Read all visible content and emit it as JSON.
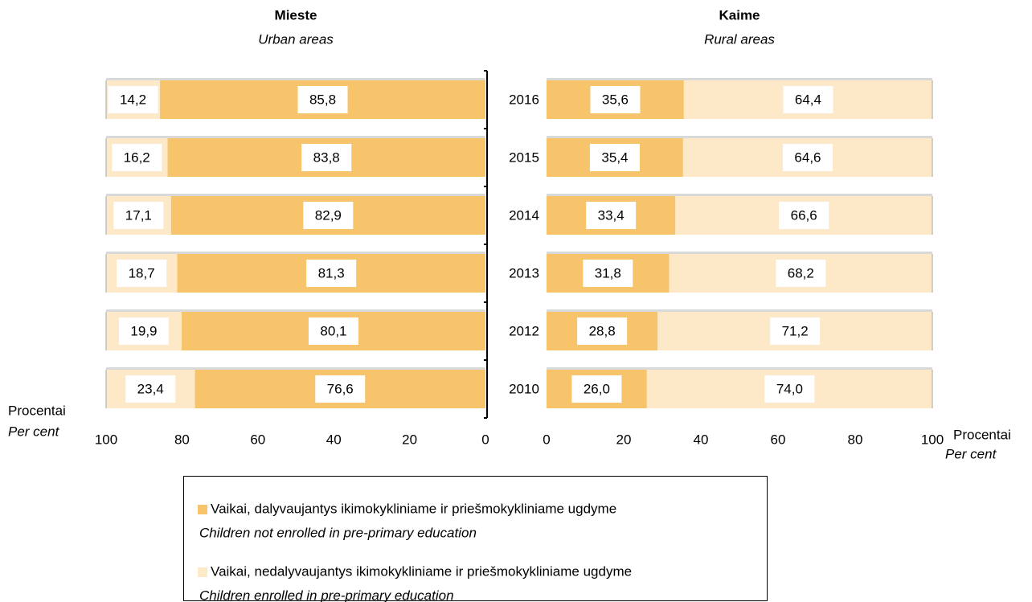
{
  "chart_data": [
    {
      "type": "bar",
      "orientation": "horizontal",
      "stacked": true,
      "x_reversed": true,
      "title": "Mieste",
      "subtitle": "Urban areas",
      "xlabel": "Procentai",
      "xlabel_en": "Per cent",
      "xlim": [
        0,
        100
      ],
      "xticks": [
        0,
        20,
        40,
        60,
        80,
        100
      ],
      "series": [
        {
          "values": [
            85.8,
            83.8,
            82.9,
            81.3,
            80.1,
            76.6
          ],
          "value_labels": [
            "85,8",
            "83,8",
            "82,9",
            "81,3",
            "80,1",
            "76,6"
          ]
        },
        {
          "values": [
            14.2,
            16.2,
            17.1,
            18.7,
            19.9,
            23.4
          ],
          "value_labels": [
            "14,2",
            "16,2",
            "17,1",
            "18,7",
            "19,9",
            "23,4"
          ]
        }
      ]
    },
    {
      "type": "bar",
      "orientation": "horizontal",
      "stacked": true,
      "x_reversed": false,
      "title": "Kaime",
      "subtitle": "Rural areas",
      "xlabel": "Procentai",
      "xlabel_en": "Per cent",
      "categories": [
        "2016",
        "2015",
        "2014",
        "2013",
        "2012",
        "2010"
      ],
      "xlim": [
        0,
        100
      ],
      "xticks": [
        0,
        20,
        40,
        60,
        80,
        100
      ],
      "series": [
        {
          "values": [
            35.6,
            35.4,
            33.4,
            31.8,
            28.8,
            26.0
          ],
          "value_labels": [
            "35,6",
            "35,4",
            "33,4",
            "31,8",
            "28,8",
            "26,0"
          ]
        },
        {
          "values": [
            64.4,
            64.6,
            66.6,
            68.2,
            71.2,
            74.0
          ],
          "value_labels": [
            "64,4",
            "64,6",
            "66,6",
            "68,2",
            "71,2",
            "74,0"
          ]
        }
      ]
    }
  ],
  "legend": [
    {
      "name": "Vaikai, dalyvaujantys ikimokykliniame ir priešmokykliniame ugdyme",
      "name_en": "Children not enrolled in pre-primary education",
      "color": "#f7c46c"
    },
    {
      "name": "Vaikai, nedalyvaujantys ikimokykliniame ir priešmokykliniame ugdyme",
      "name_en": "Children enrolled in pre-primary education",
      "color": "#fde9c8"
    }
  ]
}
